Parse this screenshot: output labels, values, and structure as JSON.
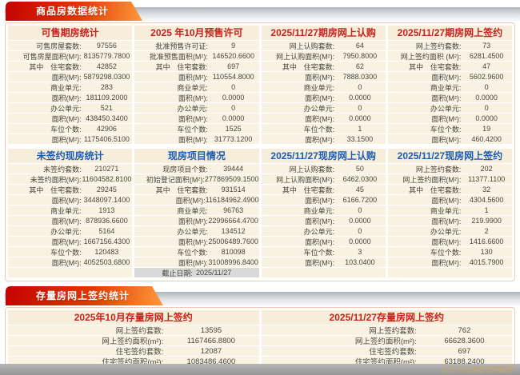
{
  "theme": {
    "tab_red": "#c40202",
    "tab_orange": "#ff9a3c",
    "header_red": "#c5231b",
    "header_blue": "#1a5db4",
    "panel_header_bg": "#f6eddb",
    "row_bg": "#f9f2e3",
    "box_border": "#f0c9ae",
    "cutoff_row_bg": "#d9d9d9",
    "bottom_bar": "#9a9a9a",
    "watermark_color": "#c9a66b"
  },
  "sc": {
    "tab": "商品房数据统计",
    "panels": [
      {
        "title": "可售期房统计",
        "rows": [
          {
            "label": "可售房屋套数:",
            "value": "97556"
          },
          {
            "label": "可售房屋面积(M²):",
            "value": "8135779.7800"
          },
          {
            "prefix": "其中",
            "label": "住宅套数:",
            "value": "42852"
          },
          {
            "label": "面积(M²):",
            "value": "5879298.0300"
          },
          {
            "label": "商业单元:",
            "value": "283"
          },
          {
            "label": "面积(M²):",
            "value": "181109.2000"
          },
          {
            "label": "办公单元:",
            "value": "521"
          },
          {
            "label": "面积(M²):",
            "value": "438450.3400"
          },
          {
            "label": "车位个数:",
            "value": "42906"
          },
          {
            "label": "面积(M²):",
            "value": "1175406.5100"
          }
        ]
      },
      {
        "title": "2025 年10月预售许可",
        "rows": [
          {
            "label": "批准预售许可证:",
            "value": "9"
          },
          {
            "label": "批准预售面积(M²):",
            "value": "146520.6600"
          },
          {
            "prefix": "其中",
            "label": "住宅套数:",
            "value": "697"
          },
          {
            "label": "面积(M²):",
            "value": "110554.8000"
          },
          {
            "label": "商业单元:",
            "value": "0"
          },
          {
            "label": "面积(M²):",
            "value": "0.0000"
          },
          {
            "label": "办公单元:",
            "value": "0"
          },
          {
            "label": "面积(M²):",
            "value": "0.0000"
          },
          {
            "label": "车位个数:",
            "value": "1525"
          },
          {
            "label": "面积(M²):",
            "value": "31773.1200"
          }
        ]
      },
      {
        "title": "2025/11/27期房网上认购",
        "rows": [
          {
            "label": "网上认购套数:",
            "value": "64"
          },
          {
            "label": "网上认购面积(M²):",
            "value": "7950.8000"
          },
          {
            "prefix": "其中",
            "label": "住宅套数:",
            "value": "62"
          },
          {
            "label": "面积(M²):",
            "value": "7888.0300"
          },
          {
            "label": "商业单元:",
            "value": "0"
          },
          {
            "label": "面积(M²):",
            "value": "0.0000"
          },
          {
            "label": "办公单元:",
            "value": "0"
          },
          {
            "label": "面积(M²):",
            "value": "0.0000"
          },
          {
            "label": "车位个数:",
            "value": "1"
          },
          {
            "label": "面积(M²):",
            "value": "33.1500"
          }
        ]
      },
      {
        "title": "2025/11/27期房网上签约",
        "rows": [
          {
            "label": "网上签约套数:",
            "value": "73"
          },
          {
            "label": "网上签约面积 (M²):",
            "value": "6281.4500"
          },
          {
            "prefix": "其中",
            "label": "住宅套数:",
            "value": "47"
          },
          {
            "label": "面积(M²):",
            "value": "5602.9600"
          },
          {
            "label": "商业单元:",
            "value": "0"
          },
          {
            "label": "面积(M²):",
            "value": "0.0000"
          },
          {
            "label": "办公单元:",
            "value": "0"
          },
          {
            "label": "面积(M²):",
            "value": "0.0000"
          },
          {
            "label": "车位个数:",
            "value": "19"
          },
          {
            "label": "面积(M²):",
            "value": "460.4200"
          }
        ]
      },
      {
        "title": "未签约现房统计",
        "rows": [
          {
            "label": "未签约套数:",
            "value": "210271"
          },
          {
            "label": "未签约面积(M²):",
            "value": "11604582.8100"
          },
          {
            "prefix": "其中",
            "label": "住宅套数:",
            "value": "29245"
          },
          {
            "label": "面积(M²):",
            "value": "3448097.1400"
          },
          {
            "label": "商业单元:",
            "value": "1913"
          },
          {
            "label": "面积(M²):",
            "value": "878936.6600"
          },
          {
            "label": "办公单元:",
            "value": "5164"
          },
          {
            "label": "面积(M²):",
            "value": "1667156.4300"
          },
          {
            "label": "车位个数:",
            "value": "120483"
          },
          {
            "label": "面积(M²):",
            "value": "4052503.6800"
          }
        ]
      },
      {
        "title": "现房项目情况",
        "rows": [
          {
            "label": "现房项目个数:",
            "value": "39444"
          },
          {
            "label": "初始登记面积(M²):",
            "value": "277869509.1500"
          },
          {
            "prefix": "其中",
            "label": "住宅套数:",
            "value": "931514"
          },
          {
            "label": "面积(M²):",
            "value": "116184962.4900"
          },
          {
            "label": "商业单元:",
            "value": "96763"
          },
          {
            "label": "面积(M²):",
            "value": "22996664.4700"
          },
          {
            "label": "办公单元:",
            "value": "134512"
          },
          {
            "label": "面积(M²):",
            "value": "25006489.7600"
          },
          {
            "label": "车位个数:",
            "value": "810098"
          },
          {
            "label": "面积(M²):",
            "value": "31008996.8400"
          }
        ],
        "footer": {
          "label": "截止日期:",
          "value": "2025/11/27"
        }
      },
      {
        "title": "2025/11/27现房网上认购",
        "rows": [
          {
            "label": "网上认购套数:",
            "value": "50"
          },
          {
            "label": "网上认购面积(M²):",
            "value": "6462.0300"
          },
          {
            "prefix": "其中",
            "label": "住宅套数:",
            "value": "45"
          },
          {
            "label": "面积(M²):",
            "value": "6166.7200"
          },
          {
            "label": "商业单元:",
            "value": "0"
          },
          {
            "label": "面积(M²):",
            "value": "0.0000"
          },
          {
            "label": "办公单元:",
            "value": "0"
          },
          {
            "label": "面积(M²):",
            "value": "0.0000"
          },
          {
            "label": "车位个数:",
            "value": "3"
          },
          {
            "label": "面积(M²):",
            "value": "103.0400"
          }
        ]
      },
      {
        "title": "2025/11/27现房网上签约",
        "rows": [
          {
            "label": "网上签约套数:",
            "value": "202"
          },
          {
            "label": "网上签约面积(M²):",
            "value": "11377.1100"
          },
          {
            "prefix": "其中",
            "label": "住宅套数:",
            "value": "32"
          },
          {
            "label": "面积(M²):",
            "value": "4304.5600"
          },
          {
            "label": "商业单元:",
            "value": "1"
          },
          {
            "label": "面积(M²):",
            "value": "219.9900"
          },
          {
            "label": "办公单元:",
            "value": "2"
          },
          {
            "label": "面积(M²):",
            "value": "1416.6600"
          },
          {
            "label": "车位个数:",
            "value": "130"
          },
          {
            "label": "面积(M²):",
            "value": "4015.7900"
          }
        ]
      }
    ]
  },
  "ss": {
    "tab": "存量房网上签约统计",
    "panels": [
      {
        "title": "2025年10月存量房网上签约",
        "rows": [
          {
            "label": "网上签约套数:",
            "value": "13595"
          },
          {
            "label": "网上签约面积(m²):",
            "value": "1167466.8800"
          },
          {
            "label": "住宅签约套数:",
            "value": "12087"
          },
          {
            "label": "住宅签约面积(m²):",
            "value": "1083486.4600"
          }
        ]
      },
      {
        "title": "2025/11/27存量房网上签约",
        "rows": [
          {
            "label": "网上签约套数:",
            "value": "762"
          },
          {
            "label": "网上签约面积(m²):",
            "value": "66628.3600"
          },
          {
            "label": "住宅签约套数:",
            "value": "697"
          },
          {
            "label": "住宅签约面积(m²):",
            "value": "63188.2400"
          }
        ]
      }
    ]
  },
  "footer": {
    "watermark": "北京市住建委官网截图"
  }
}
